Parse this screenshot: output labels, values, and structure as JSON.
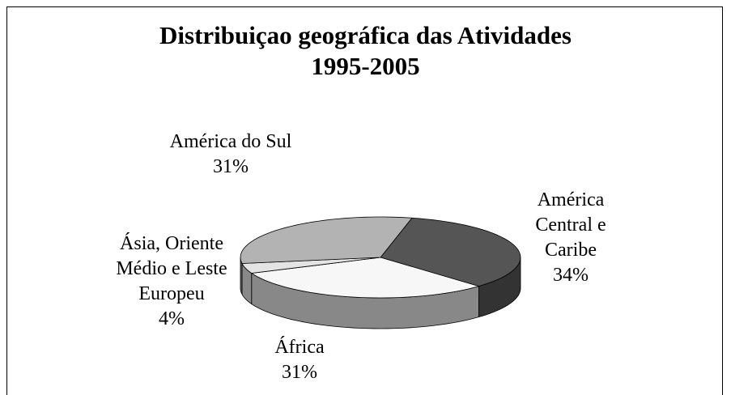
{
  "chart_data": {
    "type": "pie",
    "title": "Distribuiçao geográfica das Atividades",
    "subtitle": "1995-2005",
    "categories": [
      "América Central e Caribe",
      "África",
      "Ásia, Oriente Médio e Leste Europeu",
      "América do Sul"
    ],
    "values": [
      34,
      31,
      4,
      31
    ],
    "value_labels": [
      "34%",
      "31%",
      "4%",
      "31%"
    ],
    "colors": [
      "#555555",
      "#f7f7f7",
      "#e4e4e4",
      "#b3b3b3"
    ]
  }
}
